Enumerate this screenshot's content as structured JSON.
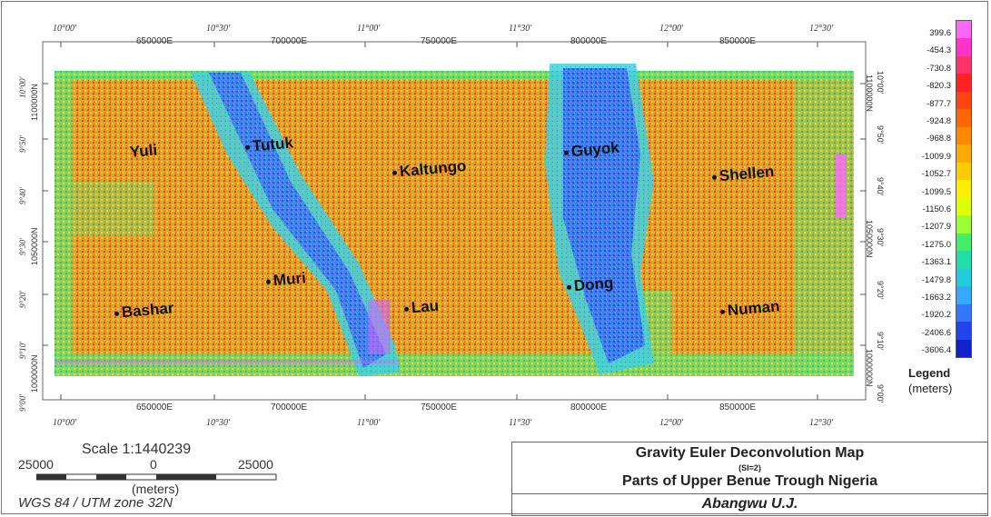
{
  "map": {
    "top_geo_ticks": [
      "10°00'",
      "10°30'",
      "11°00'",
      "11°30'",
      "12°00'",
      "12°30'"
    ],
    "top_utm_ticks": [
      "650000E",
      "700000E",
      "750000E",
      "800000E",
      "850000E"
    ],
    "bottom_geo_ticks": [
      "10°00'",
      "10°30'",
      "11°00'",
      "11°30'",
      "12°00'",
      "12°30'"
    ],
    "bottom_utm_ticks": [
      "650000E",
      "700000E",
      "750000E",
      "800000E",
      "850000E"
    ],
    "left_geo_ticks": [
      "10°00'",
      "9°50'",
      "9°40'",
      "9°30'",
      "9°20'",
      "9°10'",
      "9°00'"
    ],
    "left_utm_ticks": [
      "1100000N",
      "1050000N",
      "1000000N"
    ],
    "right_geo_ticks": [
      "10°00'",
      "9°50'",
      "9°40'",
      "9°30'",
      "9°20'",
      "9°10'",
      "9°00'"
    ],
    "right_utm_ticks": [
      "1100000N",
      "1050000N",
      "1000000N"
    ],
    "towns": [
      {
        "name": "Yuli"
      },
      {
        "name": "Tutuk"
      },
      {
        "name": "Kaltungo"
      },
      {
        "name": "Guyok"
      },
      {
        "name": "Shellen"
      },
      {
        "name": "Muri"
      },
      {
        "name": "Bashar"
      },
      {
        "name": "Lau"
      },
      {
        "name": "Dong"
      },
      {
        "name": "Numan"
      }
    ]
  },
  "legend": {
    "title": "Legend",
    "units": "(meters)",
    "values": [
      "399.6",
      "-454.3",
      "-730.8",
      "-820.3",
      "-877.7",
      "-924.8",
      "-968.8",
      "-1009.9",
      "-1052.7",
      "-1099.5",
      "-1150.6",
      "-1207.9",
      "-1275.0",
      "-1363.1",
      "-1479.8",
      "-1663.2",
      "-1920.2",
      "-2406.6",
      "-3606.4"
    ],
    "colors": [
      "#ff66ff",
      "#ff33cc",
      "#ff3366",
      "#ff2222",
      "#ff4411",
      "#ff6600",
      "#ff8800",
      "#ffaa00",
      "#ffcc00",
      "#ffee00",
      "#ddff00",
      "#99ff33",
      "#44ee66",
      "#22ddaa",
      "#22ccdd",
      "#33aaff",
      "#3377ff",
      "#2244ee",
      "#1122cc"
    ]
  },
  "scale": {
    "label": "Scale 1:1440239",
    "left": "25000",
    "mid": "0",
    "right": "25000",
    "units": "(meters)",
    "projection": "WGS 84 / UTM zone 32N"
  },
  "title_block": {
    "title": "Gravity Euler Deconvolution Map",
    "si": "(SI=2)",
    "subtitle": "Parts of Upper Benue Trough Nigeria",
    "author": "Abangwu U.J."
  }
}
